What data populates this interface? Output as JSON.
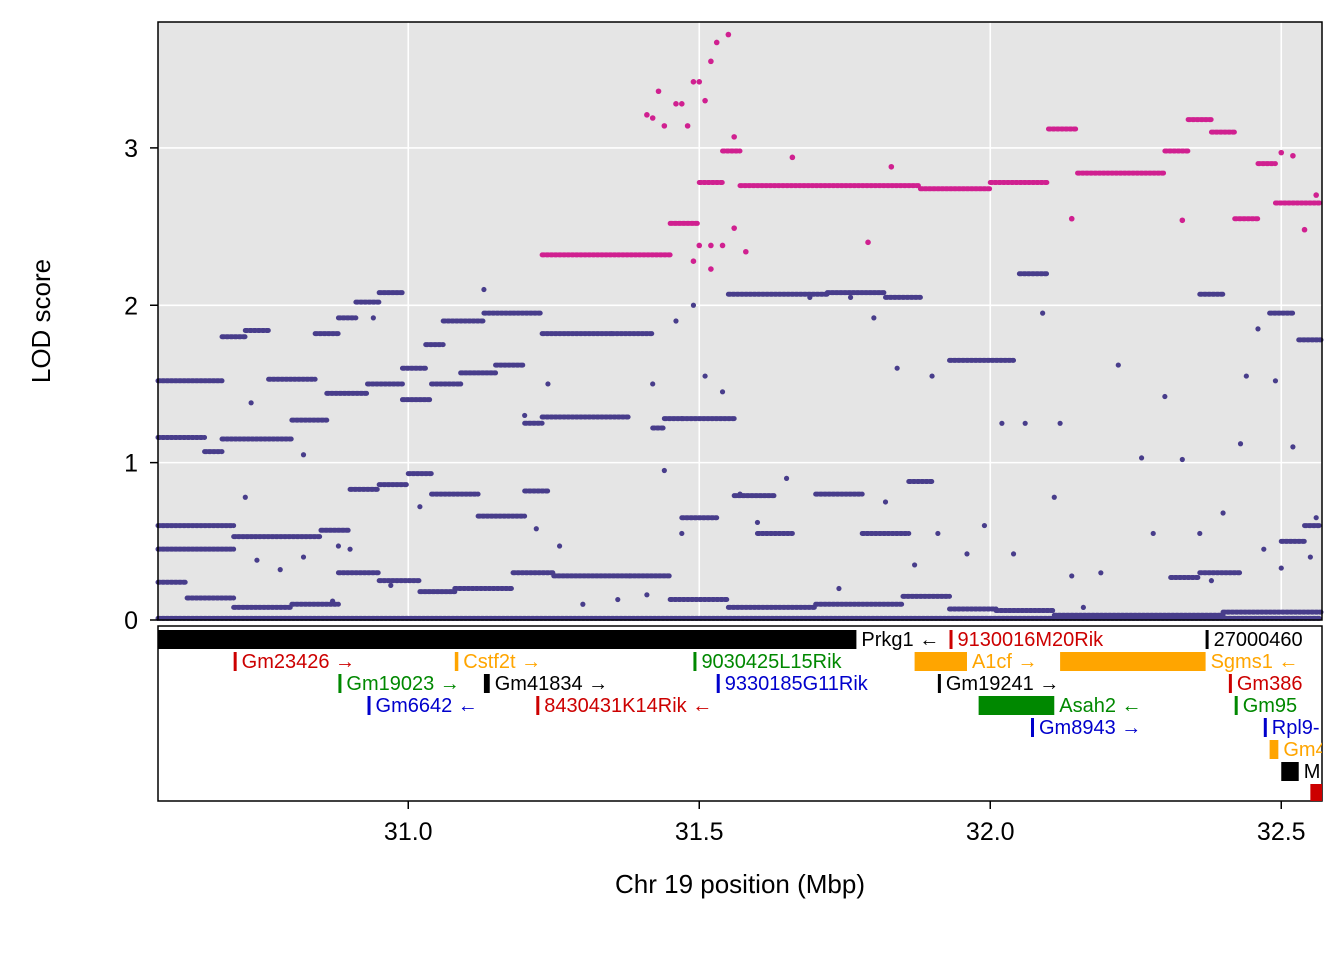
{
  "chart_data": {
    "type": "scatter",
    "xlabel": "Chr 19 position (Mbp)",
    "ylabel": "LOD score",
    "xlim": [
      30.57,
      32.57
    ],
    "ylim": [
      0,
      3.8
    ],
    "x_ticks": [
      {
        "value": 31.0,
        "label": "31.0"
      },
      {
        "value": 31.5,
        "label": "31.5"
      },
      {
        "value": 32.0,
        "label": "32.0"
      },
      {
        "value": 32.5,
        "label": "32.5"
      }
    ],
    "y_ticks": [
      {
        "value": 0,
        "label": "0"
      },
      {
        "value": 1,
        "label": "1"
      },
      {
        "value": 2,
        "label": "2"
      },
      {
        "value": 3,
        "label": "3"
      }
    ],
    "grid": true,
    "colors": {
      "panel": "#e5e5e5",
      "grid": "#ffffff",
      "highlight": "#d02090",
      "other": "#483d8b"
    },
    "highlight_series": [
      [
        31.23,
        31.45,
        2.32
      ],
      [
        31.45,
        31.5,
        2.52
      ],
      [
        31.5,
        31.54,
        2.78
      ],
      [
        31.54,
        31.57,
        2.98
      ],
      [
        31.57,
        31.88,
        2.76
      ],
      [
        31.88,
        32.0,
        2.74
      ],
      [
        32.0,
        32.1,
        2.78
      ],
      [
        32.1,
        32.15,
        3.12
      ],
      [
        32.15,
        32.3,
        2.84
      ],
      [
        32.3,
        32.34,
        2.98
      ],
      [
        32.34,
        32.38,
        3.18
      ],
      [
        32.38,
        32.42,
        3.1
      ],
      [
        32.42,
        32.46,
        2.55
      ],
      [
        32.46,
        32.49,
        2.9
      ],
      [
        32.49,
        32.57,
        2.65
      ]
    ],
    "highlight_points": [
      [
        31.41,
        3.21
      ],
      [
        31.42,
        3.19
      ],
      [
        31.43,
        3.36
      ],
      [
        31.44,
        3.14
      ],
      [
        31.46,
        3.28
      ],
      [
        31.47,
        3.28
      ],
      [
        31.48,
        3.14
      ],
      [
        31.49,
        3.42
      ],
      [
        31.5,
        3.42
      ],
      [
        31.51,
        3.3
      ],
      [
        31.52,
        3.55
      ],
      [
        31.53,
        3.67
      ],
      [
        31.55,
        3.72
      ],
      [
        31.56,
        3.07
      ],
      [
        31.56,
        2.49
      ],
      [
        31.5,
        2.38
      ],
      [
        31.52,
        2.38
      ],
      [
        31.54,
        2.38
      ],
      [
        31.58,
        2.34
      ],
      [
        31.66,
        2.94
      ],
      [
        31.79,
        2.4
      ],
      [
        31.83,
        2.88
      ],
      [
        32.14,
        2.55
      ],
      [
        32.33,
        2.54
      ],
      [
        32.5,
        2.97
      ],
      [
        32.52,
        2.95
      ],
      [
        32.54,
        2.48
      ],
      [
        32.56,
        2.7
      ],
      [
        31.49,
        2.28
      ],
      [
        31.52,
        2.23
      ]
    ],
    "other_series": [
      [
        30.57,
        30.68,
        1.52
      ],
      [
        30.68,
        30.72,
        1.8
      ],
      [
        30.72,
        30.76,
        1.84
      ],
      [
        30.76,
        30.84,
        1.53
      ],
      [
        30.84,
        30.88,
        1.82
      ],
      [
        30.88,
        30.91,
        1.92
      ],
      [
        30.91,
        30.95,
        2.02
      ],
      [
        30.95,
        30.99,
        2.08
      ],
      [
        30.99,
        31.03,
        1.6
      ],
      [
        31.03,
        31.06,
        1.75
      ],
      [
        31.06,
        31.13,
        1.9
      ],
      [
        31.13,
        31.18,
        1.95
      ],
      [
        31.18,
        31.23,
        1.95
      ],
      [
        31.23,
        31.35,
        1.82
      ],
      [
        31.35,
        31.42,
        1.82
      ],
      [
        31.42,
        31.44,
        1.22
      ],
      [
        31.44,
        31.47,
        1.28
      ],
      [
        31.47,
        31.56,
        1.28
      ],
      [
        30.57,
        30.65,
        1.16
      ],
      [
        30.65,
        30.68,
        1.07
      ],
      [
        30.68,
        30.8,
        1.15
      ],
      [
        30.8,
        30.86,
        1.27
      ],
      [
        30.86,
        30.93,
        1.44
      ],
      [
        30.93,
        30.99,
        1.5
      ],
      [
        30.99,
        31.04,
        1.4
      ],
      [
        31.04,
        31.09,
        1.5
      ],
      [
        31.09,
        31.15,
        1.57
      ],
      [
        31.15,
        31.2,
        1.62
      ],
      [
        31.2,
        31.23,
        1.25
      ],
      [
        31.23,
        31.38,
        1.29
      ],
      [
        31.55,
        31.72,
        2.07
      ],
      [
        31.72,
        31.82,
        2.08
      ],
      [
        31.82,
        31.88,
        2.05
      ],
      [
        31.93,
        32.04,
        1.65
      ],
      [
        32.05,
        32.1,
        2.2
      ],
      [
        32.36,
        32.4,
        2.07
      ],
      [
        32.48,
        32.52,
        1.95
      ],
      [
        32.53,
        32.57,
        1.78
      ],
      [
        30.57,
        30.7,
        0.6
      ],
      [
        30.57,
        30.7,
        0.45
      ],
      [
        30.7,
        30.85,
        0.53
      ],
      [
        30.85,
        30.9,
        0.57
      ],
      [
        30.9,
        30.95,
        0.83
      ],
      [
        30.95,
        31.0,
        0.86
      ],
      [
        31.0,
        31.04,
        0.93
      ],
      [
        31.04,
        31.12,
        0.8
      ],
      [
        31.12,
        31.2,
        0.66
      ],
      [
        31.2,
        31.24,
        0.82
      ],
      [
        31.47,
        31.53,
        0.65
      ],
      [
        31.56,
        31.63,
        0.79
      ],
      [
        31.6,
        31.66,
        0.55
      ],
      [
        31.7,
        31.78,
        0.8
      ],
      [
        31.78,
        31.86,
        0.55
      ],
      [
        31.86,
        31.9,
        0.88
      ],
      [
        32.31,
        32.36,
        0.27
      ],
      [
        32.36,
        32.43,
        0.3
      ],
      [
        32.5,
        32.54,
        0.5
      ],
      [
        32.54,
        32.57,
        0.6
      ],
      [
        30.57,
        30.62,
        0.24
      ],
      [
        30.62,
        30.7,
        0.14
      ],
      [
        30.7,
        30.8,
        0.08
      ],
      [
        30.8,
        30.88,
        0.1
      ],
      [
        30.88,
        30.95,
        0.3
      ],
      [
        30.95,
        31.02,
        0.25
      ],
      [
        31.02,
        31.08,
        0.18
      ],
      [
        31.08,
        31.18,
        0.2
      ],
      [
        31.18,
        31.25,
        0.3
      ],
      [
        31.25,
        31.38,
        0.28
      ],
      [
        31.38,
        31.45,
        0.28
      ],
      [
        31.45,
        31.55,
        0.13
      ],
      [
        31.55,
        31.7,
        0.08
      ],
      [
        31.7,
        31.85,
        0.1
      ],
      [
        31.85,
        31.93,
        0.15
      ],
      [
        31.93,
        32.01,
        0.07
      ],
      [
        32.01,
        32.11,
        0.06
      ],
      [
        32.11,
        32.4,
        0.03
      ],
      [
        32.4,
        32.57,
        0.05
      ],
      [
        30.57,
        32.57,
        0.01
      ]
    ],
    "other_points": [
      [
        30.72,
        0.78
      ],
      [
        30.73,
        1.38
      ],
      [
        30.74,
        0.38
      ],
      [
        30.78,
        0.32
      ],
      [
        30.82,
        0.4
      ],
      [
        30.82,
        1.05
      ],
      [
        30.87,
        0.12
      ],
      [
        30.88,
        0.47
      ],
      [
        30.9,
        0.45
      ],
      [
        30.94,
        1.92
      ],
      [
        30.97,
        0.22
      ],
      [
        31.02,
        0.72
      ],
      [
        31.09,
        1.5
      ],
      [
        31.13,
        2.1
      ],
      [
        31.2,
        1.3
      ],
      [
        31.22,
        0.58
      ],
      [
        31.24,
        1.5
      ],
      [
        31.26,
        0.47
      ],
      [
        31.3,
        0.1
      ],
      [
        31.36,
        0.13
      ],
      [
        31.41,
        0.16
      ],
      [
        31.42,
        1.5
      ],
      [
        31.44,
        0.95
      ],
      [
        31.46,
        1.9
      ],
      [
        31.47,
        0.55
      ],
      [
        31.49,
        2.0
      ],
      [
        31.51,
        1.55
      ],
      [
        31.54,
        1.45
      ],
      [
        31.57,
        0.8
      ],
      [
        31.6,
        0.62
      ],
      [
        31.65,
        0.9
      ],
      [
        31.69,
        2.05
      ],
      [
        31.74,
        0.2
      ],
      [
        31.76,
        2.05
      ],
      [
        31.8,
        1.92
      ],
      [
        31.82,
        0.75
      ],
      [
        31.84,
        1.6
      ],
      [
        31.87,
        0.35
      ],
      [
        31.9,
        1.55
      ],
      [
        31.91,
        0.55
      ],
      [
        31.96,
        0.42
      ],
      [
        31.99,
        0.6
      ],
      [
        32.02,
        1.25
      ],
      [
        32.04,
        0.42
      ],
      [
        32.06,
        1.25
      ],
      [
        32.09,
        1.95
      ],
      [
        32.11,
        0.78
      ],
      [
        32.12,
        1.25
      ],
      [
        32.14,
        0.28
      ],
      [
        32.16,
        0.08
      ],
      [
        32.19,
        0.3
      ],
      [
        32.22,
        1.62
      ],
      [
        32.26,
        1.03
      ],
      [
        32.28,
        0.55
      ],
      [
        32.3,
        1.42
      ],
      [
        32.33,
        1.02
      ],
      [
        32.36,
        0.55
      ],
      [
        32.38,
        0.25
      ],
      [
        32.4,
        0.68
      ],
      [
        32.43,
        1.12
      ],
      [
        32.44,
        1.55
      ],
      [
        32.46,
        1.85
      ],
      [
        32.47,
        0.45
      ],
      [
        32.49,
        1.52
      ],
      [
        32.5,
        0.33
      ],
      [
        32.52,
        1.1
      ],
      [
        32.55,
        0.4
      ],
      [
        32.56,
        0.65
      ]
    ]
  },
  "genes": [
    {
      "name": "Prkg1",
      "strand": "←",
      "start": 30.57,
      "end": 31.77,
      "row": 0,
      "color": "#000000"
    },
    {
      "name": "9130016M20Rik",
      "strand": "",
      "start": 31.93,
      "end": 31.933,
      "row": 0,
      "color": "#cc0000"
    },
    {
      "name": "27000460",
      "strand": "",
      "start": 32.37,
      "end": 32.373,
      "row": 0,
      "color": "#000000"
    },
    {
      "name": "Gm23426",
      "strand": "→",
      "start": 30.7,
      "end": 30.703,
      "row": 1,
      "color": "#cc0000"
    },
    {
      "name": "Cstf2t",
      "strand": "→",
      "start": 31.08,
      "end": 31.086,
      "row": 1,
      "color": "#ffa500"
    },
    {
      "name": "9030425L15Rik",
      "strand": "",
      "start": 31.49,
      "end": 31.494,
      "row": 1,
      "color": "#008800"
    },
    {
      "name": "A1cf",
      "strand": "→",
      "start": 31.87,
      "end": 31.96,
      "row": 1,
      "color": "#ffa500"
    },
    {
      "name": "Sgms1",
      "strand": "←",
      "start": 32.12,
      "end": 32.37,
      "row": 1,
      "color": "#ffa500"
    },
    {
      "name": "Gm19023",
      "strand": "→",
      "start": 30.88,
      "end": 30.883,
      "row": 2,
      "color": "#008800"
    },
    {
      "name": "Gm41834",
      "strand": "→",
      "start": 31.13,
      "end": 31.14,
      "row": 2,
      "color": "#000000"
    },
    {
      "name": "9330185G11Rik",
      "strand": "",
      "start": 31.53,
      "end": 31.535,
      "row": 2,
      "color": "#0000cc"
    },
    {
      "name": "Gm19241",
      "strand": "→",
      "start": 31.91,
      "end": 31.913,
      "row": 2,
      "color": "#000000"
    },
    {
      "name": "Gm386",
      "strand": "",
      "start": 32.41,
      "end": 32.413,
      "row": 2,
      "color": "#cc0000"
    },
    {
      "name": "Gm6642",
      "strand": "←",
      "start": 30.93,
      "end": 30.933,
      "row": 3,
      "color": "#0000cc"
    },
    {
      "name": "8430431K14Rik",
      "strand": "←",
      "start": 31.22,
      "end": 31.225,
      "row": 3,
      "color": "#cc0000"
    },
    {
      "name": "Asah2",
      "strand": "←",
      "start": 31.98,
      "end": 32.11,
      "row": 3,
      "color": "#008800"
    },
    {
      "name": "Gm95",
      "strand": "",
      "start": 32.42,
      "end": 32.423,
      "row": 3,
      "color": "#008800"
    },
    {
      "name": "Gm8943",
      "strand": "→",
      "start": 32.07,
      "end": 32.073,
      "row": 4,
      "color": "#0000cc"
    },
    {
      "name": "Rpl9-",
      "strand": "",
      "start": 32.47,
      "end": 32.473,
      "row": 4,
      "color": "#0000cc"
    },
    {
      "name": "Gm4",
      "strand": "",
      "start": 32.48,
      "end": 32.495,
      "row": 5,
      "color": "#ffa500"
    },
    {
      "name": "Mi",
      "strand": "",
      "start": 32.5,
      "end": 32.53,
      "row": 6,
      "color": "#000000"
    },
    {
      "name": "",
      "strand": "",
      "start": 32.55,
      "end": 32.57,
      "row": 7,
      "color": "#cc0000"
    }
  ]
}
